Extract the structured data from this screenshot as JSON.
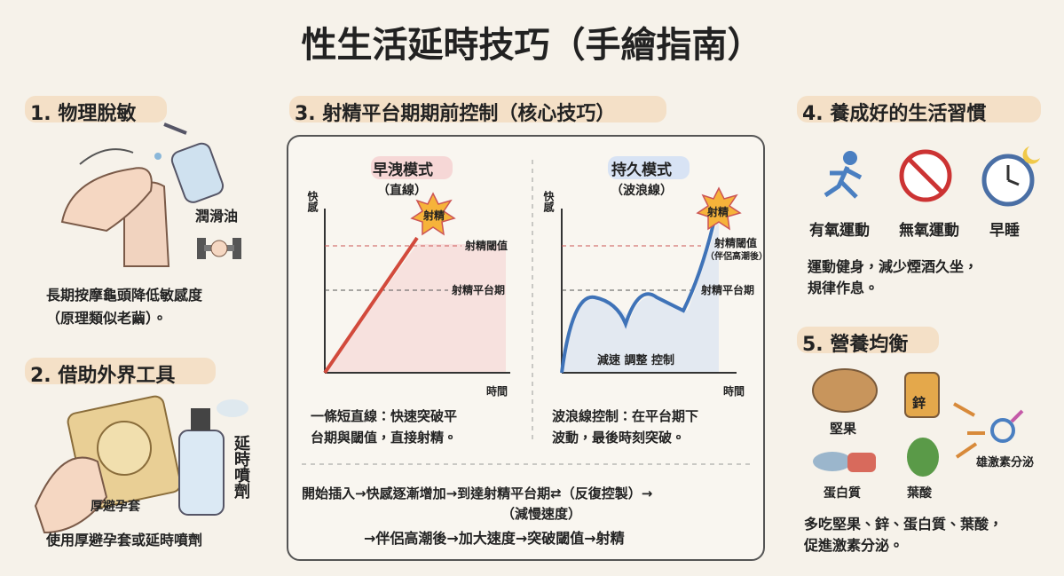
{
  "title": "性生活延時技巧（手繪指南）",
  "section1": {
    "heading": "1. 物理脫敏",
    "label": "潤滑油",
    "caption": [
      "長期按摩龜頭降低敏感度",
      "（原理類似老繭）。"
    ]
  },
  "section2": {
    "heading": "2. 借助外界工具",
    "label_condom": "厚避孕套",
    "label_spray": "延時噴劑",
    "caption": "使用厚避孕套或延時噴劑"
  },
  "section3": {
    "heading": "3. 射精平台期期前控制（核心技巧）",
    "left": {
      "title": "早洩模式",
      "subtitle": "（直線）",
      "y_label": "快感",
      "x_label": "時間",
      "burst": "射精",
      "threshold": "射精閾值",
      "plateau": "射精平台期",
      "caption": [
        "一條短直線：快速突破平",
        "台期與閾值，直接射精。"
      ]
    },
    "right": {
      "title": "持久模式",
      "subtitle": "（波浪線）",
      "y_label": "快感",
      "x_label": "時間",
      "burst": "射精",
      "threshold": "射精閾值",
      "threshold_note": "（伴侶高潮後）",
      "plateau": "射精平台期",
      "annotation": "減速 調整 控制",
      "caption": [
        "波浪線控制：在平台期下",
        "波動，最後時刻突破。"
      ]
    },
    "flow": [
      "開始插入→快感逐漸增加→到達射精平台期⇄（反復控製）→",
      "（減慢速度）",
      "→伴侶高潮後→加大速度→突破閾值→射精"
    ]
  },
  "section4": {
    "heading": "4. 養成好的生活習慣",
    "items": [
      "有氧運動",
      "無氧運動",
      "早睡"
    ],
    "caption": [
      "運動健身，減少煙酒久坐，",
      "規律作息。"
    ]
  },
  "section5": {
    "heading": "5. 營養均衡",
    "items": [
      "堅果",
      "鋅",
      "蛋白質",
      "葉酸"
    ],
    "result": "雄激素分泌",
    "caption": [
      "多吃堅果、鋅、蛋白質、葉酸，",
      "促進激素分泌。"
    ]
  }
}
